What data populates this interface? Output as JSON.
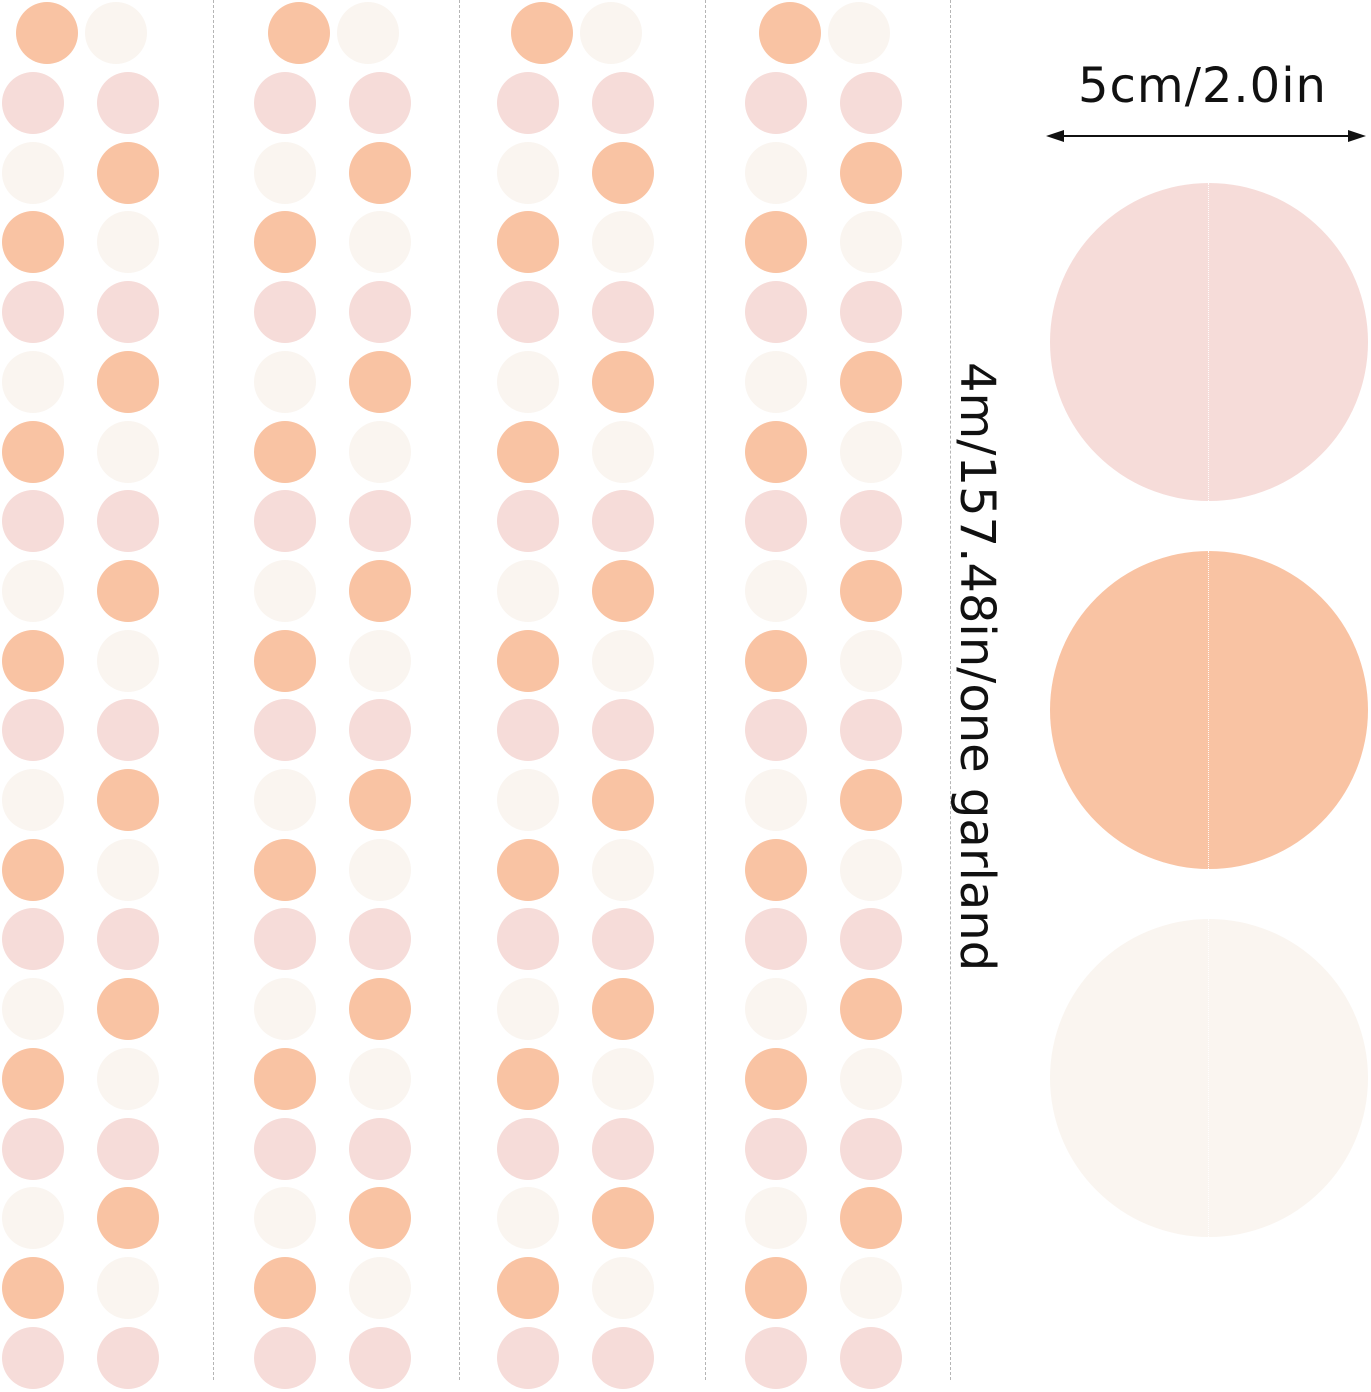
{
  "labels": {
    "diameter": "5cm/2.0in",
    "length": "4m/157.48in/one garland"
  },
  "colors": {
    "peach": "#f9c3a3",
    "pink": "#f6dcd9",
    "cream": "#faf5f0",
    "dashed_divider": "#b5b5b5"
  },
  "garland_count": 4,
  "sample_circles": [
    "pink",
    "peach",
    "cream"
  ]
}
